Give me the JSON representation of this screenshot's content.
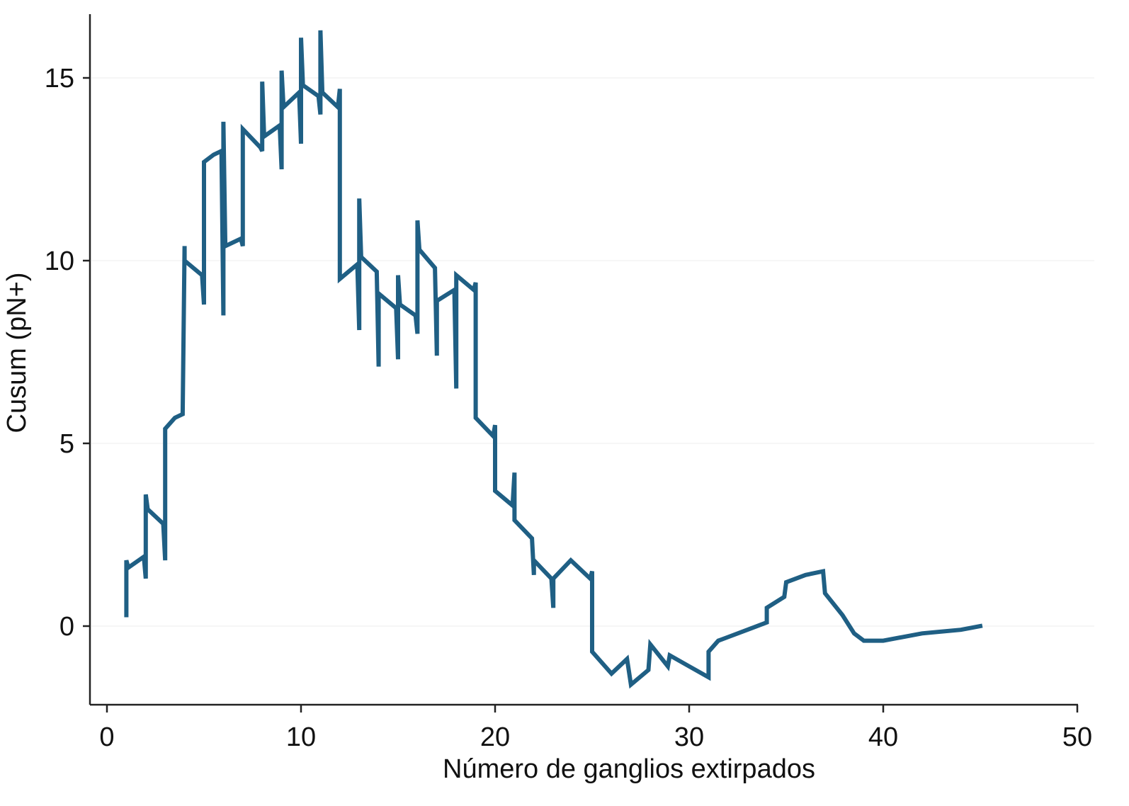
{
  "chart_data": {
    "type": "line",
    "title": "",
    "xlabel": "Número de ganglios extirpados",
    "ylabel": "Cusum (pN+)",
    "xlim": [
      -1,
      51
    ],
    "ylim": [
      -2,
      16.5
    ],
    "xticks": [
      0,
      10,
      20,
      30,
      40,
      50
    ],
    "yticks": [
      0,
      5,
      10,
      15
    ],
    "grid": "horizontal",
    "legend": "none",
    "colors": {
      "series": "#1f5f84",
      "axis": "#222222",
      "grid": "#eeeeee"
    },
    "series": [
      {
        "points": [
          [
            1,
            0.3
          ],
          [
            1,
            1.8
          ],
          [
            1.1,
            1.6
          ],
          [
            1.9,
            1.9
          ],
          [
            2,
            1.3
          ],
          [
            2,
            3.6
          ],
          [
            2.1,
            3.2
          ],
          [
            2.9,
            2.8
          ],
          [
            3,
            1.8
          ],
          [
            3,
            5.4
          ],
          [
            3.5,
            5.7
          ],
          [
            3.9,
            5.8
          ],
          [
            4,
            10.4
          ],
          [
            4,
            10.0
          ],
          [
            4.9,
            9.6
          ],
          [
            5,
            8.8
          ],
          [
            5,
            12.7
          ],
          [
            5.5,
            12.9
          ],
          [
            5.9,
            13.0
          ],
          [
            6,
            8.5
          ],
          [
            6,
            13.8
          ],
          [
            6.1,
            10.4
          ],
          [
            6.9,
            10.6
          ],
          [
            7,
            10.4
          ],
          [
            7,
            13.6
          ],
          [
            7.9,
            13.1
          ],
          [
            8,
            13.0
          ],
          [
            8,
            14.9
          ],
          [
            8.1,
            13.4
          ],
          [
            8.9,
            13.7
          ],
          [
            9,
            12.5
          ],
          [
            9,
            15.2
          ],
          [
            9.1,
            14.2
          ],
          [
            9.9,
            14.6
          ],
          [
            10,
            13.2
          ],
          [
            10,
            16.1
          ],
          [
            10.1,
            14.8
          ],
          [
            10.9,
            14.5
          ],
          [
            11,
            14.0
          ],
          [
            11,
            16.3
          ],
          [
            11.1,
            14.6
          ],
          [
            11.9,
            14.2
          ],
          [
            12,
            14.7
          ],
          [
            12,
            9.5
          ],
          [
            12.9,
            9.9
          ],
          [
            13,
            8.1
          ],
          [
            13,
            11.7
          ],
          [
            13.1,
            10.1
          ],
          [
            13.9,
            9.7
          ],
          [
            14,
            7.1
          ],
          [
            14,
            9.1
          ],
          [
            14.9,
            8.7
          ],
          [
            15,
            7.3
          ],
          [
            15,
            9.6
          ],
          [
            15.1,
            8.8
          ],
          [
            15.9,
            8.5
          ],
          [
            16,
            8.0
          ],
          [
            16,
            11.1
          ],
          [
            16.1,
            10.3
          ],
          [
            16.9,
            9.8
          ],
          [
            17,
            7.4
          ],
          [
            17,
            8.9
          ],
          [
            17.9,
            9.2
          ],
          [
            18,
            6.5
          ],
          [
            18,
            9.6
          ],
          [
            18.9,
            9.2
          ],
          [
            19,
            9.4
          ],
          [
            19,
            5.7
          ],
          [
            19.9,
            5.2
          ],
          [
            20,
            5.5
          ],
          [
            20,
            3.7
          ],
          [
            20.9,
            3.3
          ],
          [
            21,
            4.2
          ],
          [
            21,
            2.9
          ],
          [
            21.9,
            2.4
          ],
          [
            22,
            1.4
          ],
          [
            22,
            1.8
          ],
          [
            22.9,
            1.3
          ],
          [
            23,
            0.5
          ],
          [
            23,
            1.3
          ],
          [
            23.9,
            1.8
          ],
          [
            24.9,
            1.3
          ],
          [
            25,
            1.5
          ],
          [
            25,
            -0.7
          ],
          [
            26,
            -1.3
          ],
          [
            26.8,
            -0.9
          ],
          [
            27,
            -1.6
          ],
          [
            27.9,
            -1.2
          ],
          [
            28,
            -0.5
          ],
          [
            28.9,
            -1.1
          ],
          [
            29,
            -0.8
          ],
          [
            30,
            -1.1
          ],
          [
            31,
            -1.4
          ],
          [
            31,
            -0.7
          ],
          [
            31.5,
            -0.4
          ],
          [
            32,
            -0.3
          ],
          [
            33,
            -0.1
          ],
          [
            34,
            0.1
          ],
          [
            34,
            0.5
          ],
          [
            34.9,
            0.8
          ],
          [
            35,
            1.2
          ],
          [
            36,
            1.4
          ],
          [
            36.9,
            1.5
          ],
          [
            37,
            0.9
          ],
          [
            37.9,
            0.3
          ],
          [
            38.5,
            -0.2
          ],
          [
            39,
            -0.4
          ],
          [
            40,
            -0.4
          ],
          [
            42,
            -0.2
          ],
          [
            44,
            -0.1
          ],
          [
            45,
            0.0
          ]
        ]
      }
    ]
  }
}
